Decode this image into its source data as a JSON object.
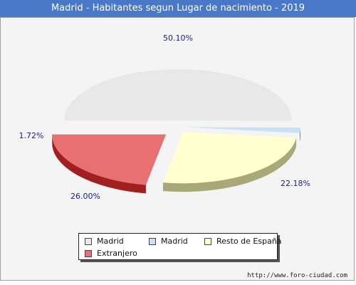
{
  "chart_data": {
    "type": "pie",
    "title": "Madrid - Habitantes segun Lugar de nacimiento - 2019",
    "categories": [
      "Madrid",
      "Madrid",
      "Resto de España",
      "Extranjero"
    ],
    "values": [
      50.1,
      1.72,
      26.0,
      22.18
    ],
    "labels": [
      "50.10%",
      "1.72%",
      "26.00%",
      "22.18%"
    ],
    "colors": [
      "#e8e8e8",
      "#c8e0f8",
      "#ffffd0",
      "#e87070"
    ],
    "side_colors": [
      "#909090",
      "#7090b0",
      "#a8a878",
      "#a02020"
    ],
    "legend_position": "bottom"
  },
  "legend": {
    "items": [
      {
        "label": "Madrid",
        "color": "#e8e8e8"
      },
      {
        "label": "Madrid",
        "color": "#c8e0f8"
      },
      {
        "label": "Resto de España",
        "color": "#ffffd0"
      },
      {
        "label": "Extranjero",
        "color": "#e87070"
      }
    ]
  },
  "footer": {
    "url": "http://www.foro-ciudad.com"
  }
}
